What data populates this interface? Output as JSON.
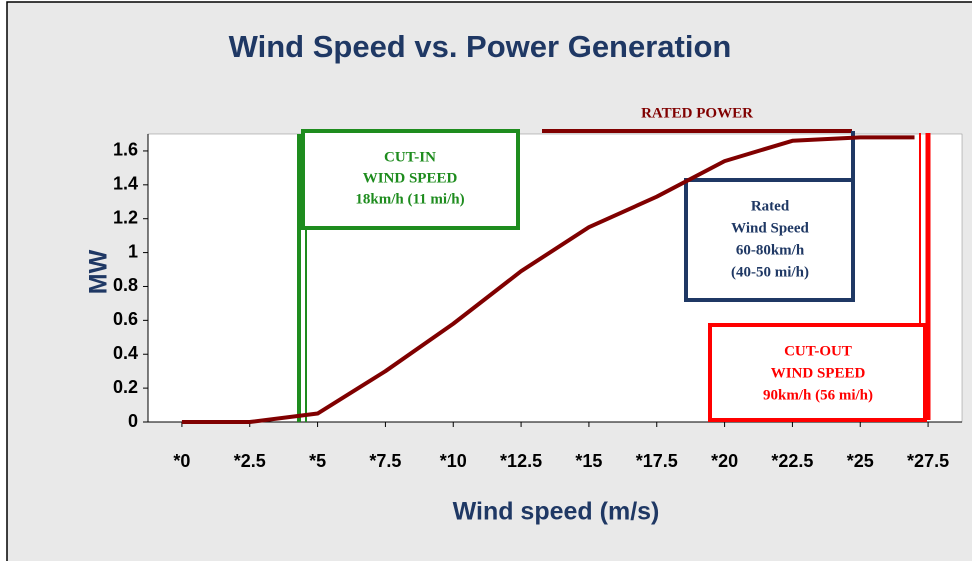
{
  "chart_data": {
    "type": "line",
    "title": "Wind Speed vs. Power Generation",
    "x_label": "Wind speed (m/s)",
    "y_label": "MW",
    "x": [
      0,
      2.5,
      5,
      7.5,
      10,
      12.5,
      15,
      17.5,
      20,
      22.5,
      25,
      27
    ],
    "series": [
      {
        "name": "Power",
        "color": "#800000",
        "values": [
          0,
          0,
          0.05,
          0.3,
          0.58,
          0.89,
          1.15,
          1.33,
          1.54,
          1.66,
          1.68,
          1.68
        ]
      }
    ],
    "xlim": [
      -1.25,
      28.75
    ],
    "ylim": [
      0,
      1.7
    ],
    "xticks": [
      {
        "value": 0,
        "label": "*0"
      },
      {
        "value": 2.5,
        "label": "*2.5"
      },
      {
        "value": 5,
        "label": "*5"
      },
      {
        "value": 7.5,
        "label": "*7.5"
      },
      {
        "value": 10,
        "label": "*10"
      },
      {
        "value": 12.5,
        "label": "*12.5"
      },
      {
        "value": 15,
        "label": "*15"
      },
      {
        "value": 17.5,
        "label": "*17.5"
      },
      {
        "value": 20,
        "label": "*20"
      },
      {
        "value": 22.5,
        "label": "*22.5"
      },
      {
        "value": 25,
        "label": "*25"
      },
      {
        "value": 27.5,
        "label": "*27.5"
      }
    ],
    "yticks": [
      0,
      0.2,
      0.4,
      0.6,
      0.8,
      1,
      1.2,
      1.4,
      1.6
    ],
    "annotations": [
      {
        "lines": [
          "CUT-IN",
          "WIND SPEED",
          "18km/h (11 mi/h)"
        ],
        "color": "#1e8c1e"
      },
      {
        "lines": [
          "RATED POWER"
        ],
        "color": "#800000"
      },
      {
        "lines": [
          "Rated",
          "Wind Speed",
          "60-80km/h",
          "(40-50 mi/h)"
        ],
        "color": "#1f3864"
      },
      {
        "lines": [
          "CUT-OUT",
          "WIND SPEED",
          "90km/h (56 mi/h)"
        ],
        "color": "#ff0000"
      }
    ]
  }
}
